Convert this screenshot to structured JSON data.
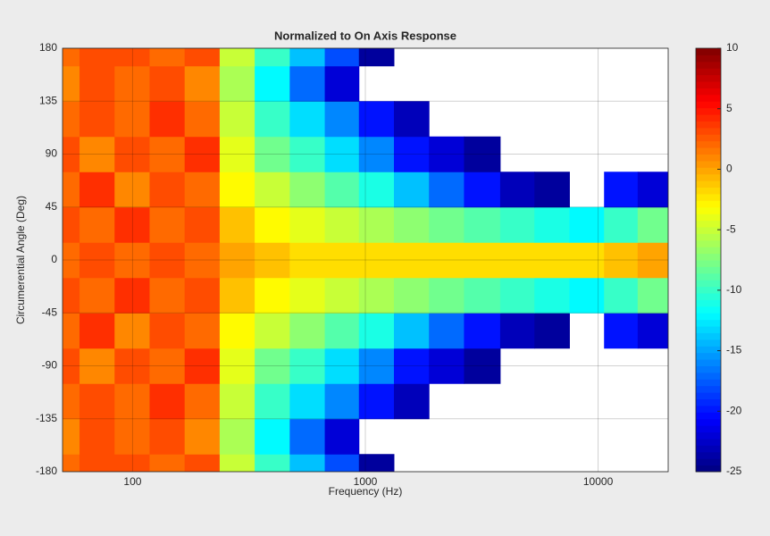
{
  "chart_data": {
    "type": "heatmap",
    "title": "Normalized to On Axis Response",
    "xlabel": "Frequency (Hz)",
    "ylabel": "Circumerential Angle (Deg)",
    "xscale": "log",
    "x": [
      50,
      70,
      100,
      140,
      200,
      280,
      400,
      560,
      800,
      1100,
      1600,
      2200,
      3200,
      4500,
      6300,
      9000,
      12500,
      17500
    ],
    "y": [
      -180,
      -150,
      -120,
      -90,
      -60,
      -30,
      0,
      30,
      60,
      90,
      120,
      150,
      180
    ],
    "z": [
      [
        2,
        3,
        3,
        2,
        3,
        -5,
        -10,
        -14,
        -18,
        -24,
        null,
        null,
        null,
        null,
        null,
        null,
        null,
        null
      ],
      [
        1,
        3,
        2,
        3,
        1,
        -6,
        -12,
        -17,
        -22,
        null,
        null,
        null,
        null,
        null,
        null,
        null,
        null,
        null
      ],
      [
        2,
        3,
        2,
        4,
        2,
        -5,
        -10,
        -13,
        -16,
        -20,
        -23,
        null,
        null,
        null,
        null,
        null,
        null,
        null
      ],
      [
        3,
        1,
        3,
        2,
        4,
        -4,
        -8,
        -10,
        -13,
        -16,
        -20,
        -22,
        -24,
        null,
        null,
        null,
        null,
        null
      ],
      [
        2,
        4,
        1,
        3,
        2,
        -3,
        -5,
        -7,
        -9,
        -11,
        -14,
        -17,
        -20,
        -23,
        -24,
        null,
        -20,
        -22
      ],
      [
        3,
        2,
        4,
        2,
        3,
        -1,
        -3,
        -4,
        -5,
        -6,
        -7,
        -8,
        -9,
        -10,
        -11,
        -12,
        -10,
        -8
      ],
      [
        2,
        3,
        2,
        3,
        2,
        0,
        -1,
        -2,
        -2,
        -2,
        -2,
        -2,
        -2,
        -2,
        -2,
        -2,
        -1,
        0
      ],
      [
        3,
        2,
        4,
        2,
        3,
        -1,
        -3,
        -4,
        -5,
        -6,
        -7,
        -8,
        -9,
        -10,
        -11,
        -12,
        -10,
        -8
      ],
      [
        2,
        4,
        1,
        3,
        2,
        -3,
        -5,
        -7,
        -9,
        -11,
        -14,
        -17,
        -20,
        -23,
        -24,
        null,
        -20,
        -22
      ],
      [
        3,
        1,
        3,
        2,
        4,
        -4,
        -8,
        -10,
        -13,
        -16,
        -20,
        -22,
        -24,
        null,
        null,
        null,
        null,
        null
      ],
      [
        2,
        3,
        2,
        4,
        2,
        -5,
        -10,
        -13,
        -16,
        -20,
        -23,
        null,
        null,
        null,
        null,
        null,
        null,
        null
      ],
      [
        1,
        3,
        2,
        3,
        1,
        -6,
        -12,
        -17,
        -22,
        null,
        null,
        null,
        null,
        null,
        null,
        null,
        null,
        null
      ],
      [
        2,
        3,
        3,
        2,
        3,
        -5,
        -10,
        -14,
        -18,
        -24,
        null,
        null,
        null,
        null,
        null,
        null,
        null,
        null
      ]
    ],
    "xlim": [
      50,
      20000
    ],
    "xticks": [
      100,
      1000,
      10000
    ],
    "ylim": [
      -180,
      180
    ],
    "yticks": [
      -180,
      -135,
      -90,
      -45,
      0,
      45,
      90,
      135,
      180
    ],
    "clim": [
      -25,
      10
    ],
    "cticks": [
      -25,
      -20,
      -15,
      -10,
      -5,
      0,
      5,
      10
    ],
    "colormap": "jet",
    "grid": true
  }
}
